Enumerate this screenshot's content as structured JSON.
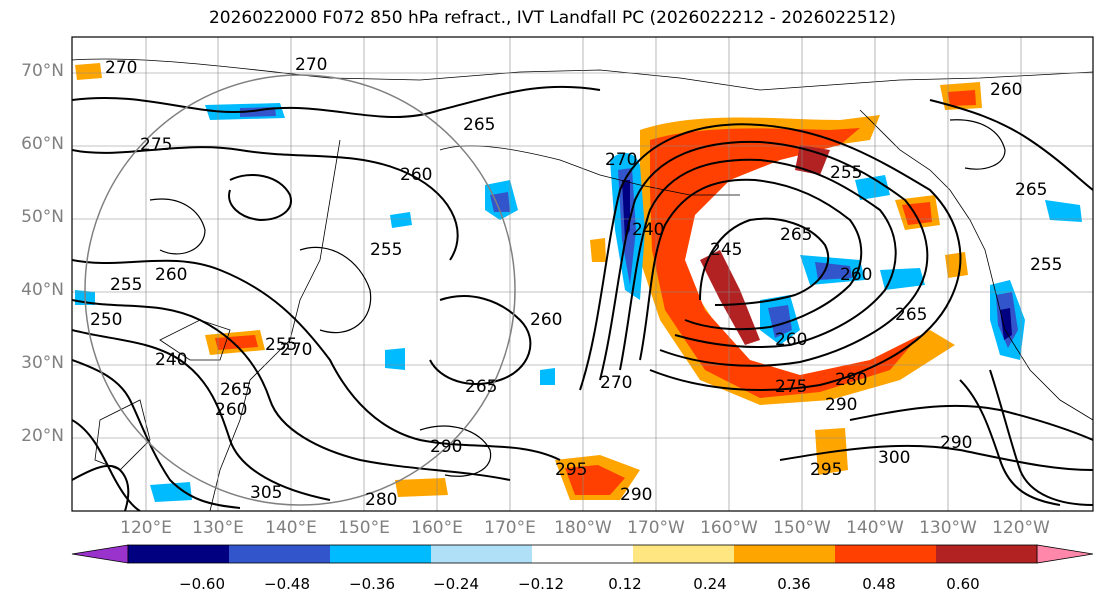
{
  "title": "2026022000 F072 850 hPa refract., IVT Landfall PC (2026022212 - 2026022512)",
  "lat_labels": [
    "70°N",
    "60°N",
    "50°N",
    "40°N",
    "30°N",
    "20°N"
  ],
  "lon_labels": [
    "120°E",
    "130°E",
    "140°E",
    "150°E",
    "160°E",
    "170°E",
    "180°W",
    "170°W",
    "160°W",
    "150°W",
    "140°W",
    "130°W",
    "120°W"
  ],
  "contour_labels": [
    "270",
    "270",
    "260",
    "275",
    "265",
    "260",
    "255",
    "255",
    "260",
    "250",
    "240",
    "265",
    "255",
    "270",
    "240",
    "245",
    "255",
    "265",
    "260",
    "265",
    "260",
    "260",
    "270",
    "275",
    "280",
    "290",
    "295",
    "290",
    "300",
    "290",
    "305",
    "280",
    "295",
    "290",
    "270",
    "260",
    "265",
    "265",
    "255"
  ],
  "colorbar": {
    "colors": [
      "#9933cc",
      "#000080",
      "#3355cc",
      "#00bbff",
      "#b0e0f8",
      "#ffffff",
      "#ffe680",
      "#ffa500",
      "#ff4000",
      "#b22222",
      "#ff88aa"
    ],
    "tick_labels": [
      "−0.60",
      "−0.48",
      "−0.36",
      "−0.24",
      "−0.12",
      "0.12",
      "0.24",
      "0.36",
      "0.48",
      "0.60"
    ]
  }
}
